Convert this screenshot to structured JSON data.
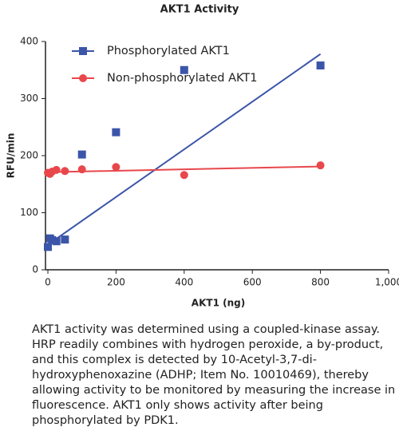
{
  "chart_data": {
    "type": "scatter",
    "title": "AKT1 Activity",
    "x_label": "AKT1 (ng)",
    "y_label": "RFU/min",
    "xlim": [
      0,
      1000
    ],
    "xticks": [
      0,
      200,
      400,
      600,
      800,
      {
        "value": 1000,
        "label": "1,000"
      }
    ],
    "ylim": [
      0,
      400
    ],
    "yticks": [
      0,
      100,
      200,
      300,
      400
    ],
    "legend": "top-left",
    "series": [
      {
        "name": "Phosphorylated AKT1",
        "color": "#3b55a8",
        "marker": "square",
        "x": [
          0,
          6.25,
          12.5,
          25,
          50,
          100,
          200,
          400,
          800
        ],
        "values": [
          40,
          55,
          52,
          50,
          53,
          202,
          241,
          350,
          358
        ],
        "fit": {
          "x": [
            0,
            800
          ],
          "values": [
            44,
            378
          ]
        }
      },
      {
        "name": "Non-phosphorylated AKT1",
        "color": "#e8474c",
        "marker": "circle",
        "x": [
          0,
          6.25,
          12.5,
          25,
          50,
          100,
          200,
          400,
          800
        ],
        "values": [
          170,
          168,
          172,
          175,
          173,
          176,
          180,
          166,
          183
        ],
        "fit": {
          "x": [
            0,
            800
          ],
          "values": [
            171,
            181
          ]
        }
      }
    ]
  },
  "caption": "AKT1 activity was determined using a coupled-kinase assay. HRP readily combines with hydrogen peroxide, a by-product, and this complex is detected by 10-Acetyl-3,7-di-hydroxyphenoxazine (ADHP; Item No. 10010469), thereby allowing activity to be monitored by measuring the increase in fluorescence. AKT1 only shows activity after being phosphorylated by PDK1."
}
